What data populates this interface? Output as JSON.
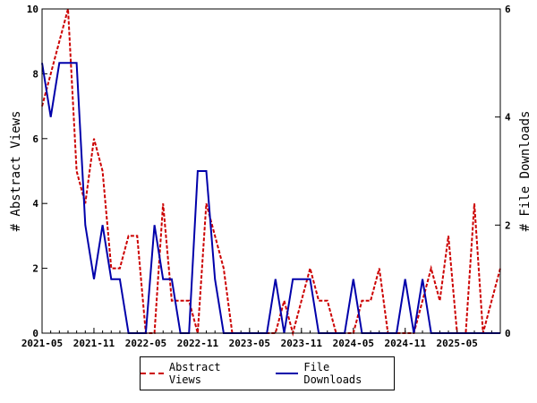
{
  "chart_data": {
    "type": "line",
    "xlabel": "",
    "ylabel": "# Abstract Views",
    "y2label": "# File Downloads",
    "ylim": [
      0,
      10
    ],
    "y2lim": [
      0,
      6
    ],
    "yticks": [
      "0",
      "2",
      "4",
      "6",
      "8",
      "10"
    ],
    "y2ticks": [
      "0",
      "2",
      "4",
      "6"
    ],
    "xticks": [
      "2021-05",
      "2021-11",
      "2022-05",
      "2022-11",
      "2023-05",
      "2023-11",
      "2024-05",
      "2024-11",
      "2025-05"
    ],
    "x": [
      "2021-05",
      "2021-06",
      "2021-07",
      "2021-08",
      "2021-09",
      "2021-10",
      "2021-11",
      "2021-12",
      "2022-01",
      "2022-02",
      "2022-03",
      "2022-04",
      "2022-05",
      "2022-06",
      "2022-07",
      "2022-08",
      "2022-09",
      "2022-10",
      "2022-11",
      "2022-12",
      "2023-01",
      "2023-02",
      "2023-03",
      "2023-04",
      "2023-05",
      "2023-06",
      "2023-07",
      "2023-08",
      "2023-09",
      "2023-10",
      "2023-11",
      "2023-12",
      "2024-01",
      "2024-02",
      "2024-03",
      "2024-04",
      "2024-05",
      "2024-06",
      "2024-07",
      "2024-08",
      "2024-09",
      "2024-10",
      "2024-11",
      "2024-12",
      "2025-01",
      "2025-02",
      "2025-03",
      "2025-04",
      "2025-05",
      "2025-06",
      "2025-07",
      "2025-08",
      "2025-09",
      "2025-10"
    ],
    "series": [
      {
        "name": "Abstract Views",
        "axis": "left",
        "color": "#cc0000",
        "style": "dashed",
        "values": [
          7,
          8,
          9,
          10,
          5,
          4,
          6,
          5,
          2,
          2,
          3,
          3,
          0,
          0,
          4,
          1,
          1,
          1,
          0,
          4,
          3,
          2,
          0,
          0,
          0,
          0,
          0,
          0,
          1,
          0,
          1,
          2,
          1,
          1,
          0,
          0,
          0,
          1,
          1,
          2,
          0,
          0,
          0,
          0,
          1,
          2,
          1,
          3,
          0,
          0,
          4,
          0,
          1,
          2
        ]
      },
      {
        "name": "File Downloads",
        "axis": "right",
        "color": "#0000aa",
        "style": "solid",
        "values": [
          5,
          4,
          5,
          5,
          5,
          2,
          1,
          2,
          1,
          1,
          0,
          0,
          0,
          2,
          1,
          1,
          0,
          0,
          3,
          3,
          1,
          0,
          0,
          0,
          0,
          0,
          0,
          1,
          0,
          1,
          1,
          1,
          0,
          0,
          0,
          0,
          1,
          0,
          0,
          0,
          0,
          0,
          1,
          0,
          1,
          0,
          0,
          0,
          0,
          0,
          0,
          0,
          0,
          0
        ]
      }
    ],
    "legend_position": "bottom"
  }
}
